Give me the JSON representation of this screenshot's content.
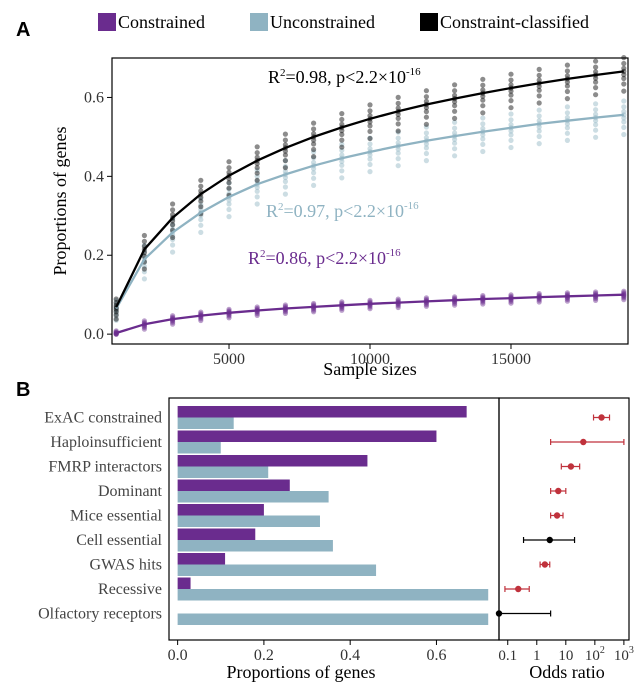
{
  "panel_labels": [
    "A",
    "B"
  ],
  "colors": {
    "constrained": "#6a2c8e",
    "unconstrained": "#8fb3c2",
    "classified": "#000000",
    "or_sig": "#c0323c",
    "or_ns": "#000000"
  },
  "chart_data": [
    {
      "type": "scatter",
      "panel": "A",
      "title": "",
      "xlabel": "Sample sizes",
      "ylabel": "Proportions of genes",
      "xlim": [
        1000,
        19000
      ],
      "ylim": [
        0,
        0.66
      ],
      "xticks": [
        5000,
        10000,
        15000
      ],
      "xtick_labels": [
        "5000",
        "10000",
        "15000"
      ],
      "yticks": [
        0.0,
        0.2,
        0.4,
        0.6
      ],
      "ytick_labels": [
        "0.0",
        "0.2",
        "0.4",
        "0.6"
      ],
      "grid": false,
      "legend_position": "top",
      "legend": [
        "Constrained",
        "Unconstrained",
        "Constraint-classified"
      ],
      "x": [
        1000,
        2000,
        3000,
        4000,
        5000,
        6000,
        7000,
        8000,
        9000,
        10000,
        11000,
        12000,
        13000,
        14000,
        15000,
        16000,
        17000,
        18000,
        19000
      ],
      "series": [
        {
          "name": "Constrained",
          "values": [
            0.003,
            0.025,
            0.038,
            0.047,
            0.054,
            0.06,
            0.065,
            0.069,
            0.073,
            0.077,
            0.08,
            0.083,
            0.086,
            0.089,
            0.091,
            0.094,
            0.096,
            0.098,
            0.1
          ]
        },
        {
          "name": "Unconstrained",
          "values": [
            0.065,
            0.19,
            0.258,
            0.308,
            0.348,
            0.38,
            0.405,
            0.427,
            0.446,
            0.462,
            0.477,
            0.49,
            0.502,
            0.513,
            0.523,
            0.533,
            0.541,
            0.549,
            0.556
          ]
        },
        {
          "name": "Constraint-classified",
          "values": [
            0.068,
            0.215,
            0.295,
            0.355,
            0.402,
            0.44,
            0.472,
            0.5,
            0.524,
            0.546,
            0.565,
            0.582,
            0.597,
            0.611,
            0.624,
            0.636,
            0.647,
            0.657,
            0.666
          ]
        }
      ],
      "annotations": [
        {
          "series": "Constraint-classified",
          "base": "R",
          "sup": "2",
          "text": "=0.98, p<2.2×10",
          "exp": "-16"
        },
        {
          "series": "Unconstrained",
          "base": "R",
          "sup": "2",
          "text": "=0.97, p<2.2×10",
          "exp": "-16"
        },
        {
          "series": "Constrained",
          "base": "R",
          "sup": "2",
          "text": "=0.86, p<2.2×10",
          "exp": "-16"
        }
      ]
    },
    {
      "type": "bar",
      "panel": "B",
      "orientation": "horizontal",
      "xlabel": "Proportions of genes",
      "ylabel": "",
      "xlim": [
        0,
        0.73
      ],
      "xticks": [
        0.0,
        0.2,
        0.4,
        0.6
      ],
      "xtick_labels": [
        "0.0",
        "0.2",
        "0.4",
        "0.6"
      ],
      "grid": false,
      "categories": [
        "ExAC constrained",
        "Haploinsufficient",
        "FMRP interactors",
        "Dominant",
        "Mice essential",
        "Cell essential",
        "GWAS hits",
        "Recessive",
        "Olfactory receptors"
      ],
      "series": [
        {
          "name": "Constrained",
          "values": [
            0.67,
            0.6,
            0.44,
            0.26,
            0.2,
            0.18,
            0.11,
            0.03,
            0.0
          ]
        },
        {
          "name": "Unconstrained",
          "values": [
            0.13,
            0.1,
            0.21,
            0.35,
            0.33,
            0.36,
            0.46,
            0.72,
            0.72
          ]
        }
      ]
    },
    {
      "type": "scatter",
      "panel": "B",
      "xlabel": "Odds ratio",
      "ylabel": "",
      "xscale": "log",
      "xlim": [
        0.05,
        1500
      ],
      "xticks": [
        0.1,
        1,
        10,
        100,
        1000
      ],
      "xtick_labels": [
        {
          "base": "0.1",
          "exp": ""
        },
        {
          "base": "1",
          "exp": ""
        },
        {
          "base": "10",
          "exp": ""
        },
        {
          "base": "10",
          "exp": "2"
        },
        {
          "base": "10",
          "exp": "3"
        }
      ],
      "grid": false,
      "categories": [
        "ExAC constrained",
        "Haploinsufficient",
        "FMRP interactors",
        "Dominant",
        "Mice essential",
        "Cell essential",
        "GWAS hits",
        "Recessive",
        "Olfactory receptors"
      ],
      "or": [
        170,
        40,
        15,
        5.5,
        5,
        2.8,
        1.9,
        0.23,
        0.05
      ],
      "ci_low": [
        90,
        3,
        7,
        3,
        3,
        0.35,
        1.3,
        0.08,
        0.05
      ],
      "ci_high": [
        320,
        1000,
        30,
        10,
        8,
        20,
        2.8,
        0.55,
        3
      ],
      "significant": [
        true,
        true,
        true,
        true,
        true,
        false,
        true,
        true,
        false
      ]
    }
  ]
}
